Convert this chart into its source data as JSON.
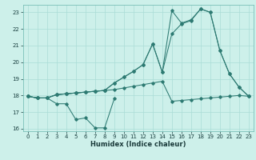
{
  "x_full": [
    0,
    1,
    2,
    3,
    4,
    5,
    6,
    7,
    8,
    9,
    10,
    11,
    12,
    13,
    14,
    15,
    16,
    17,
    18,
    19,
    20,
    21,
    22,
    23
  ],
  "x_line1": [
    0,
    1,
    2,
    3,
    4,
    5,
    6,
    7,
    8,
    9
  ],
  "y_line1": [
    17.95,
    17.85,
    17.85,
    17.5,
    17.5,
    16.55,
    16.65,
    16.05,
    16.05,
    17.8
  ],
  "y_line2": [
    17.95,
    17.85,
    17.85,
    18.05,
    18.1,
    18.15,
    18.2,
    18.25,
    18.3,
    18.35,
    18.45,
    18.55,
    18.65,
    18.75,
    18.85,
    17.65,
    17.7,
    17.75,
    17.8,
    17.85,
    17.9,
    17.95,
    18.0,
    17.95
  ],
  "y_line3": [
    17.95,
    17.85,
    17.85,
    18.05,
    18.1,
    18.15,
    18.2,
    18.25,
    18.3,
    18.75,
    19.1,
    19.45,
    19.85,
    21.1,
    19.4,
    23.1,
    22.35,
    22.55,
    23.2,
    23.0,
    20.7,
    19.3,
    18.5,
    17.95
  ],
  "y_line4": [
    17.95,
    17.85,
    17.85,
    18.05,
    18.1,
    18.15,
    18.2,
    18.25,
    18.3,
    18.75,
    19.1,
    19.45,
    19.85,
    21.1,
    19.4,
    21.7,
    22.3,
    22.5,
    23.2,
    23.0,
    20.7,
    19.3,
    18.5,
    17.95
  ],
  "color": "#2d7a72",
  "bg_color": "#cdf0ea",
  "grid_color": "#aaddd6",
  "xlabel": "Humidex (Indice chaleur)",
  "ylim": [
    15.85,
    23.45
  ],
  "xlim": [
    -0.5,
    23.5
  ],
  "yticks": [
    16,
    17,
    18,
    19,
    20,
    21,
    22,
    23
  ],
  "xticks": [
    0,
    1,
    2,
    3,
    4,
    5,
    6,
    7,
    8,
    9,
    10,
    11,
    12,
    13,
    14,
    15,
    16,
    17,
    18,
    19,
    20,
    21,
    22,
    23
  ]
}
